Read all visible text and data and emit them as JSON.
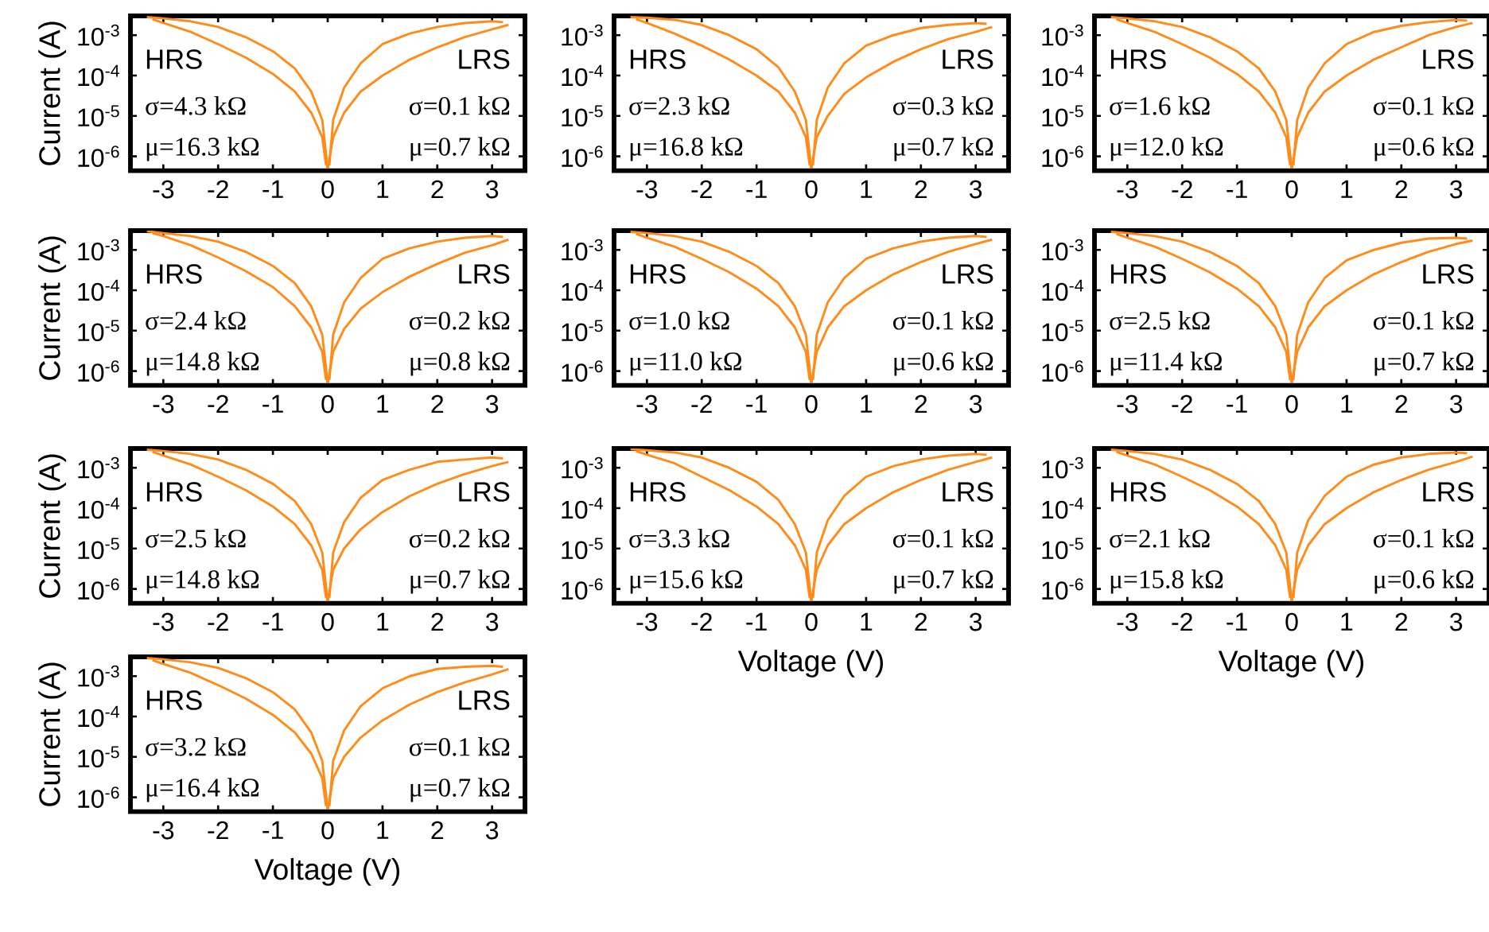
{
  "chart_data": [
    {
      "type": "line",
      "ylabel": "Current (A)",
      "log": "y",
      "xlim": [
        -3.6,
        3.6
      ],
      "ylim": [
        4.4e-07,
        0.003
      ],
      "xticks": [
        -3,
        -2,
        -1,
        0,
        1,
        2,
        3
      ],
      "yticks": [
        {
          "value": 1e-06,
          "label": "10$^{-6}$"
        },
        {
          "value": 1e-05,
          "label": "10$^{-5}$"
        },
        {
          "value": 0.0001,
          "label": "10$^{-4}$"
        },
        {
          "value": 0.001,
          "label": "10$^{-3}$"
        }
      ],
      "annotations": [
        "HRS",
        "σ=4.3 kΩ",
        "μ=16.3 kΩ",
        "LRS",
        "σ=0.1 kΩ",
        "μ=0.7 kΩ"
      ],
      "series": [
        {
          "color": "#ff8c1a",
          "x": [
            0,
            0.1,
            0.3,
            0.6,
            1,
            1.5,
            2,
            2.5,
            3,
            3.3
          ],
          "values": [
            5e-07,
            3e-06,
            1.2e-05,
            4e-05,
            0.0001,
            0.00025,
            0.0005,
            0.0009,
            0.0014,
            0.0018
          ]
        },
        {
          "color": "#ff8c1a",
          "x": [
            0.03,
            0.1,
            0.3,
            0.6,
            1,
            1.5,
            2,
            2.5,
            3,
            3.2
          ],
          "values": [
            6e-07,
            8e-06,
            5e-05,
            0.0002,
            0.0006,
            0.0011,
            0.0016,
            0.002,
            0.0022,
            0.0021
          ]
        },
        {
          "color": "#ff8c1a",
          "x": [
            -3.3,
            -3,
            -2.5,
            -2,
            -1.5,
            -1,
            -0.6,
            -0.3,
            -0.1,
            0
          ],
          "values": [
            0.0028,
            0.0026,
            0.0022,
            0.0016,
            0.0009,
            0.0004,
            0.00015,
            4e-05,
            8e-06,
            5e-07
          ]
        },
        {
          "color": "#ff8c1a",
          "x": [
            -3.2,
            -3,
            -2.5,
            -2,
            -1.5,
            -1,
            -0.6,
            -0.3,
            -0.1,
            -0.03
          ],
          "values": [
            0.0025,
            0.002,
            0.0012,
            0.0006,
            0.00028,
            0.00011,
            4e-05,
            1.2e-05,
            3e-06,
            6e-07
          ]
        }
      ]
    },
    {
      "type": "line",
      "log": "y",
      "xlim": [
        -3.6,
        3.6
      ],
      "ylim": [
        4.4e-07,
        0.003
      ],
      "xticks": [
        -3,
        -2,
        -1,
        0,
        1,
        2,
        3
      ],
      "yticks": [
        {
          "value": 1e-06,
          "label": "10$^{-6}$"
        },
        {
          "value": 1e-05,
          "label": "10$^{-5}$"
        },
        {
          "value": 0.0001,
          "label": "10$^{-4}$"
        },
        {
          "value": 0.001,
          "label": "10$^{-3}$"
        }
      ],
      "annotations": [
        "HRS",
        "σ=2.3 kΩ",
        "μ=16.8 kΩ",
        "LRS",
        "σ=0.3 kΩ",
        "μ=0.7 kΩ"
      ],
      "series": [
        {
          "color": "#ff8c1a",
          "x": [
            0,
            0.1,
            0.3,
            0.6,
            1,
            1.5,
            2,
            2.5,
            3,
            3.3
          ],
          "values": [
            5e-07,
            3e-06,
            1e-05,
            3.5e-05,
            9e-05,
            0.00022,
            0.00045,
            0.0008,
            0.0012,
            0.0016
          ]
        },
        {
          "color": "#ff8c1a",
          "x": [
            0.03,
            0.1,
            0.3,
            0.6,
            1,
            1.5,
            2,
            2.5,
            3,
            3.2
          ],
          "values": [
            6e-07,
            8e-06,
            5e-05,
            0.0002,
            0.00055,
            0.001,
            0.0015,
            0.0018,
            0.002,
            0.0019
          ]
        },
        {
          "color": "#ff8c1a",
          "x": [
            -3.3,
            -3,
            -2.5,
            -2,
            -1.5,
            -1,
            -0.6,
            -0.3,
            -0.1,
            0
          ],
          "values": [
            0.0028,
            0.0027,
            0.0024,
            0.0018,
            0.001,
            0.00045,
            0.00016,
            4e-05,
            8e-06,
            5e-07
          ]
        },
        {
          "color": "#ff8c1a",
          "x": [
            -3.2,
            -3,
            -2.5,
            -2,
            -1.5,
            -1,
            -0.6,
            -0.3,
            -0.1,
            -0.03
          ],
          "values": [
            0.0025,
            0.002,
            0.0011,
            0.00055,
            0.00025,
            0.0001,
            4e-05,
            1.2e-05,
            3e-06,
            6e-07
          ]
        }
      ]
    },
    {
      "type": "line",
      "log": "y",
      "xlim": [
        -3.6,
        3.6
      ],
      "ylim": [
        4.4e-07,
        0.003
      ],
      "xticks": [
        -3,
        -2,
        -1,
        0,
        1,
        2,
        3
      ],
      "yticks": [
        {
          "value": 1e-06,
          "label": "10$^{-6}$"
        },
        {
          "value": 1e-05,
          "label": "10$^{-5}$"
        },
        {
          "value": 0.0001,
          "label": "10$^{-4}$"
        },
        {
          "value": 0.001,
          "label": "10$^{-3}$"
        }
      ],
      "annotations": [
        "HRS",
        "σ=1.6 kΩ",
        "μ=12.0 kΩ",
        "LRS",
        "σ=0.1 kΩ",
        "μ=0.6 kΩ"
      ],
      "series": [
        {
          "color": "#ff8c1a",
          "x": [
            0,
            0.1,
            0.3,
            0.6,
            1,
            1.5,
            2,
            2.5,
            3,
            3.3
          ],
          "values": [
            5e-07,
            3e-06,
            1.2e-05,
            4e-05,
            0.0001,
            0.00025,
            0.0005,
            0.001,
            0.0016,
            0.002
          ]
        },
        {
          "color": "#ff8c1a",
          "x": [
            0.03,
            0.1,
            0.3,
            0.6,
            1,
            1.5,
            2,
            2.5,
            3,
            3.2
          ],
          "values": [
            6e-07,
            8e-06,
            5e-05,
            0.0002,
            0.0006,
            0.0012,
            0.0017,
            0.0021,
            0.0024,
            0.0023
          ]
        },
        {
          "color": "#ff8c1a",
          "x": [
            -3.3,
            -3,
            -2.5,
            -2,
            -1.5,
            -1,
            -0.6,
            -0.3,
            -0.1,
            0
          ],
          "values": [
            0.0028,
            0.0026,
            0.0022,
            0.0016,
            0.0009,
            0.0004,
            0.00015,
            4e-05,
            8e-06,
            5e-07
          ]
        },
        {
          "color": "#ff8c1a",
          "x": [
            -3.2,
            -3,
            -2.5,
            -2,
            -1.5,
            -1,
            -0.6,
            -0.3,
            -0.1,
            -0.03
          ],
          "values": [
            0.0025,
            0.002,
            0.0012,
            0.0006,
            0.00028,
            0.00011,
            4e-05,
            1.2e-05,
            3e-06,
            6e-07
          ]
        }
      ]
    },
    {
      "type": "line",
      "ylabel": "Current (A)",
      "log": "y",
      "xlim": [
        -3.6,
        3.6
      ],
      "ylim": [
        4.4e-07,
        0.003
      ],
      "xticks": [
        -3,
        -2,
        -1,
        0,
        1,
        2,
        3
      ],
      "yticks": [
        {
          "value": 1e-06,
          "label": "10$^{-6}$"
        },
        {
          "value": 1e-05,
          "label": "10$^{-5}$"
        },
        {
          "value": 0.0001,
          "label": "10$^{-4}$"
        },
        {
          "value": 0.001,
          "label": "10$^{-3}$"
        }
      ],
      "annotations": [
        "HRS",
        "σ=2.4 kΩ",
        "μ=14.8 kΩ",
        "LRS",
        "σ=0.2 kΩ",
        "μ=0.8 kΩ"
      ],
      "series": [
        {
          "color": "#ff8c1a",
          "x": [
            0,
            0.1,
            0.3,
            0.6,
            1,
            1.5,
            2,
            2.5,
            3,
            3.3
          ],
          "values": [
            5e-07,
            3e-06,
            1.1e-05,
            3.5e-05,
            9e-05,
            0.00022,
            0.00045,
            0.00085,
            0.0013,
            0.0018
          ]
        },
        {
          "color": "#ff8c1a",
          "x": [
            0.03,
            0.1,
            0.3,
            0.6,
            1,
            1.5,
            2,
            2.5,
            3,
            3.2
          ],
          "values": [
            6e-07,
            8e-06,
            5e-05,
            0.0002,
            0.0006,
            0.0011,
            0.0016,
            0.002,
            0.0022,
            0.0021
          ]
        },
        {
          "color": "#ff8c1a",
          "x": [
            -3.3,
            -3,
            -2.5,
            -2,
            -1.5,
            -1,
            -0.6,
            -0.3,
            -0.1,
            0
          ],
          "values": [
            0.0029,
            0.0026,
            0.0022,
            0.0016,
            0.0009,
            0.0004,
            0.00015,
            4e-05,
            8e-06,
            5e-07
          ]
        },
        {
          "color": "#ff8c1a",
          "x": [
            -3.2,
            -3,
            -2.5,
            -2,
            -1.5,
            -1,
            -0.6,
            -0.3,
            -0.1,
            -0.03
          ],
          "values": [
            0.0026,
            0.0022,
            0.0013,
            0.00065,
            0.0003,
            0.00012,
            4e-05,
            1.2e-05,
            3e-06,
            6e-07
          ]
        }
      ]
    },
    {
      "type": "line",
      "log": "y",
      "xlim": [
        -3.6,
        3.6
      ],
      "ylim": [
        4.4e-07,
        0.003
      ],
      "xticks": [
        -3,
        -2,
        -1,
        0,
        1,
        2,
        3
      ],
      "yticks": [
        {
          "value": 1e-06,
          "label": "10$^{-6}$"
        },
        {
          "value": 1e-05,
          "label": "10$^{-5}$"
        },
        {
          "value": 0.0001,
          "label": "10$^{-4}$"
        },
        {
          "value": 0.001,
          "label": "10$^{-3}$"
        }
      ],
      "annotations": [
        "HRS",
        "σ=1.0 kΩ",
        "μ=11.0 kΩ",
        "LRS",
        "σ=0.1 kΩ",
        "μ=0.6 kΩ"
      ],
      "series": [
        {
          "color": "#ff8c1a",
          "x": [
            0,
            0.1,
            0.3,
            0.6,
            1,
            1.5,
            2,
            2.5,
            3,
            3.3
          ],
          "values": [
            5e-07,
            3e-06,
            1.2e-05,
            4e-05,
            0.0001,
            0.00025,
            0.0005,
            0.0009,
            0.0014,
            0.0018
          ]
        },
        {
          "color": "#ff8c1a",
          "x": [
            0.03,
            0.1,
            0.3,
            0.6,
            1,
            1.5,
            2,
            2.5,
            3,
            3.2
          ],
          "values": [
            6e-07,
            8e-06,
            5e-05,
            0.0002,
            0.0006,
            0.0011,
            0.0016,
            0.002,
            0.0022,
            0.0021
          ]
        },
        {
          "color": "#ff8c1a",
          "x": [
            -3.3,
            -3,
            -2.5,
            -2,
            -1.5,
            -1,
            -0.6,
            -0.3,
            -0.1,
            0
          ],
          "values": [
            0.0028,
            0.0026,
            0.0022,
            0.0016,
            0.0009,
            0.0004,
            0.00015,
            4e-05,
            8e-06,
            5e-07
          ]
        },
        {
          "color": "#ff8c1a",
          "x": [
            -3.2,
            -3,
            -2.5,
            -2,
            -1.5,
            -1,
            -0.6,
            -0.3,
            -0.1,
            -0.03
          ],
          "values": [
            0.0025,
            0.002,
            0.0012,
            0.0006,
            0.00028,
            0.00011,
            4e-05,
            1.2e-05,
            3e-06,
            6e-07
          ]
        }
      ]
    },
    {
      "type": "line",
      "log": "y",
      "xlim": [
        -3.6,
        3.6
      ],
      "ylim": [
        4.4e-07,
        0.003
      ],
      "xticks": [
        -3,
        -2,
        -1,
        0,
        1,
        2,
        3
      ],
      "yticks": [
        {
          "value": 1e-06,
          "label": "10$^{-6}$"
        },
        {
          "value": 1e-05,
          "label": "10$^{-5}$"
        },
        {
          "value": 0.0001,
          "label": "10$^{-4}$"
        },
        {
          "value": 0.001,
          "label": "10$^{-3}$"
        }
      ],
      "annotations": [
        "HRS",
        "σ=2.5 kΩ",
        "μ=11.4 kΩ",
        "LRS",
        "σ=0.1 kΩ",
        "μ=0.7 kΩ"
      ],
      "series": [
        {
          "color": "#ff8c1a",
          "x": [
            0,
            0.1,
            0.3,
            0.6,
            1,
            1.5,
            2,
            2.5,
            3,
            3.3
          ],
          "values": [
            5e-07,
            3e-06,
            1.2e-05,
            4e-05,
            0.0001,
            0.00025,
            0.0005,
            0.0009,
            0.0014,
            0.0017
          ]
        },
        {
          "color": "#ff8c1a",
          "x": [
            0.03,
            0.1,
            0.3,
            0.6,
            1,
            1.5,
            2,
            2.5,
            3,
            3.2
          ],
          "values": [
            6e-07,
            8e-06,
            5e-05,
            0.0002,
            0.00055,
            0.001,
            0.0015,
            0.0019,
            0.002,
            0.0019
          ]
        },
        {
          "color": "#ff8c1a",
          "x": [
            -3.3,
            -3,
            -2.5,
            -2,
            -1.5,
            -1,
            -0.6,
            -0.3,
            -0.1,
            0
          ],
          "values": [
            0.0028,
            0.0026,
            0.0022,
            0.0016,
            0.0009,
            0.0004,
            0.00015,
            4e-05,
            8e-06,
            5e-07
          ]
        },
        {
          "color": "#ff8c1a",
          "x": [
            -3.2,
            -3,
            -2.5,
            -2,
            -1.5,
            -1,
            -0.6,
            -0.3,
            -0.1,
            -0.03
          ],
          "values": [
            0.0025,
            0.002,
            0.0012,
            0.0006,
            0.00028,
            0.00011,
            4e-05,
            1.2e-05,
            3e-06,
            6e-07
          ]
        }
      ]
    },
    {
      "type": "line",
      "ylabel": "Current (A)",
      "log": "y",
      "xlim": [
        -3.6,
        3.6
      ],
      "ylim": [
        4.4e-07,
        0.003
      ],
      "xticks": [
        -3,
        -2,
        -1,
        0,
        1,
        2,
        3
      ],
      "yticks": [
        {
          "value": 1e-06,
          "label": "10$^{-6}$"
        },
        {
          "value": 1e-05,
          "label": "10$^{-5}$"
        },
        {
          "value": 0.0001,
          "label": "10$^{-4}$"
        },
        {
          "value": 0.001,
          "label": "10$^{-3}$"
        }
      ],
      "annotations": [
        "HRS",
        "σ=2.5 kΩ",
        "μ=14.8 kΩ",
        "LRS",
        "σ=0.2 kΩ",
        "μ=0.7 kΩ"
      ],
      "series": [
        {
          "color": "#ff8c1a",
          "x": [
            0,
            0.1,
            0.3,
            0.6,
            1,
            1.5,
            2,
            2.5,
            3,
            3.3
          ],
          "values": [
            5e-07,
            3e-06,
            1e-05,
            3e-05,
            8e-05,
            0.0002,
            0.0004,
            0.0007,
            0.0011,
            0.0014
          ]
        },
        {
          "color": "#ff8c1a",
          "x": [
            0.03,
            0.1,
            0.3,
            0.6,
            1,
            1.5,
            2,
            2.5,
            3,
            3.2
          ],
          "values": [
            6e-07,
            8e-06,
            4.5e-05,
            0.00018,
            0.0005,
            0.0009,
            0.0014,
            0.0016,
            0.0018,
            0.0017
          ]
        },
        {
          "color": "#ff8c1a",
          "x": [
            -3.3,
            -3,
            -2.5,
            -2,
            -1.5,
            -1,
            -0.6,
            -0.3,
            -0.1,
            0
          ],
          "values": [
            0.0028,
            0.0026,
            0.0022,
            0.0016,
            0.0009,
            0.0004,
            0.00015,
            4e-05,
            8e-06,
            5e-07
          ]
        },
        {
          "color": "#ff8c1a",
          "x": [
            -3.2,
            -3,
            -2.5,
            -2,
            -1.5,
            -1,
            -0.6,
            -0.3,
            -0.1,
            -0.03
          ],
          "values": [
            0.0025,
            0.002,
            0.0012,
            0.0006,
            0.00028,
            0.00011,
            4e-05,
            1.2e-05,
            3e-06,
            6e-07
          ]
        }
      ]
    },
    {
      "type": "line",
      "xlabel": "Voltage (V)",
      "log": "y",
      "xlim": [
        -3.6,
        3.6
      ],
      "ylim": [
        4.4e-07,
        0.003
      ],
      "xticks": [
        -3,
        -2,
        -1,
        0,
        1,
        2,
        3
      ],
      "yticks": [
        {
          "value": 1e-06,
          "label": "10$^{-6}$"
        },
        {
          "value": 1e-05,
          "label": "10$^{-5}$"
        },
        {
          "value": 0.0001,
          "label": "10$^{-4}$"
        },
        {
          "value": 0.001,
          "label": "10$^{-3}$"
        }
      ],
      "annotations": [
        "HRS",
        "σ=3.3 kΩ",
        "μ=15.6 kΩ",
        "LRS",
        "σ=0.1 kΩ",
        "μ=0.7 kΩ"
      ],
      "series": [
        {
          "color": "#ff8c1a",
          "x": [
            0,
            0.1,
            0.3,
            0.6,
            1,
            1.5,
            2,
            2.5,
            3,
            3.3
          ],
          "values": [
            5e-07,
            3e-06,
            1.2e-05,
            4e-05,
            0.0001,
            0.00025,
            0.0005,
            0.0009,
            0.0014,
            0.0018
          ]
        },
        {
          "color": "#ff8c1a",
          "x": [
            0.03,
            0.1,
            0.3,
            0.6,
            1,
            1.5,
            2,
            2.5,
            3,
            3.2
          ],
          "values": [
            6e-07,
            8e-06,
            5e-05,
            0.0002,
            0.0006,
            0.0011,
            0.0016,
            0.002,
            0.0022,
            0.0021
          ]
        },
        {
          "color": "#ff8c1a",
          "x": [
            -3.3,
            -3,
            -2.5,
            -2,
            -1.5,
            -1,
            -0.6,
            -0.3,
            -0.1,
            0
          ],
          "values": [
            0.0029,
            0.0027,
            0.0024,
            0.0018,
            0.001,
            0.00045,
            0.00016,
            4e-05,
            8e-06,
            5e-07
          ]
        },
        {
          "color": "#ff8c1a",
          "x": [
            -3.2,
            -3,
            -2.5,
            -2,
            -1.5,
            -1,
            -0.6,
            -0.3,
            -0.1,
            -0.03
          ],
          "values": [
            0.0026,
            0.0021,
            0.0013,
            0.0006,
            0.00028,
            0.00011,
            4e-05,
            1.2e-05,
            3e-06,
            6e-07
          ]
        }
      ]
    },
    {
      "type": "line",
      "xlabel": "Voltage (V)",
      "log": "y",
      "xlim": [
        -3.6,
        3.6
      ],
      "ylim": [
        4.4e-07,
        0.003
      ],
      "xticks": [
        -3,
        -2,
        -1,
        0,
        1,
        2,
        3
      ],
      "yticks": [
        {
          "value": 1e-06,
          "label": "10$^{-6}$"
        },
        {
          "value": 1e-05,
          "label": "10$^{-5}$"
        },
        {
          "value": 0.0001,
          "label": "10$^{-4}$"
        },
        {
          "value": 0.001,
          "label": "10$^{-3}$"
        }
      ],
      "annotations": [
        "HRS",
        "σ=2.1 kΩ",
        "μ=15.8 kΩ",
        "LRS",
        "σ=0.1 kΩ",
        "μ=0.6 kΩ"
      ],
      "series": [
        {
          "color": "#ff8c1a",
          "x": [
            0,
            0.1,
            0.3,
            0.6,
            1,
            1.5,
            2,
            2.5,
            3,
            3.3
          ],
          "values": [
            5e-07,
            3e-06,
            1.2e-05,
            4e-05,
            0.0001,
            0.00025,
            0.0005,
            0.0009,
            0.0014,
            0.0019
          ]
        },
        {
          "color": "#ff8c1a",
          "x": [
            0.03,
            0.1,
            0.3,
            0.6,
            1,
            1.5,
            2,
            2.5,
            3,
            3.2
          ],
          "values": [
            6e-07,
            8e-06,
            5e-05,
            0.0002,
            0.0006,
            0.0012,
            0.0018,
            0.0022,
            0.0024,
            0.0023
          ]
        },
        {
          "color": "#ff8c1a",
          "x": [
            -3.3,
            -3,
            -2.5,
            -2,
            -1.5,
            -1,
            -0.6,
            -0.3,
            -0.1,
            0
          ],
          "values": [
            0.0028,
            0.0026,
            0.0022,
            0.0016,
            0.0009,
            0.0004,
            0.00015,
            4e-05,
            8e-06,
            5e-07
          ]
        },
        {
          "color": "#ff8c1a",
          "x": [
            -3.2,
            -3,
            -2.5,
            -2,
            -1.5,
            -1,
            -0.6,
            -0.3,
            -0.1,
            -0.03
          ],
          "values": [
            0.0025,
            0.002,
            0.0012,
            0.0006,
            0.00028,
            0.00011,
            4e-05,
            1.2e-05,
            3e-06,
            6e-07
          ]
        }
      ]
    },
    {
      "type": "line",
      "ylabel": "Current (A)",
      "xlabel": "Voltage (V)",
      "log": "y",
      "xlim": [
        -3.6,
        3.6
      ],
      "ylim": [
        4.4e-07,
        0.003
      ],
      "xticks": [
        -3,
        -2,
        -1,
        0,
        1,
        2,
        3
      ],
      "yticks": [
        {
          "value": 1e-06,
          "label": "10$^{-6}$"
        },
        {
          "value": 1e-05,
          "label": "10$^{-5}$"
        },
        {
          "value": 0.0001,
          "label": "10$^{-4}$"
        },
        {
          "value": 0.001,
          "label": "10$^{-3}$"
        }
      ],
      "annotations": [
        "HRS",
        "σ=3.2 kΩ",
        "μ=16.4 kΩ",
        "LRS",
        "σ=0.1 kΩ",
        "μ=0.7 kΩ"
      ],
      "series": [
        {
          "color": "#ff8c1a",
          "x": [
            0,
            0.1,
            0.3,
            0.6,
            1,
            1.5,
            2,
            2.5,
            3,
            3.3
          ],
          "values": [
            5e-07,
            3e-06,
            1e-05,
            3e-05,
            8e-05,
            0.0002,
            0.0004,
            0.0007,
            0.0011,
            0.0015
          ]
        },
        {
          "color": "#ff8c1a",
          "x": [
            0.03,
            0.1,
            0.3,
            0.6,
            1,
            1.5,
            2,
            2.5,
            3,
            3.2
          ],
          "values": [
            6e-07,
            8e-06,
            4.5e-05,
            0.00018,
            0.0005,
            0.001,
            0.0015,
            0.0017,
            0.0018,
            0.0017
          ]
        },
        {
          "color": "#ff8c1a",
          "x": [
            -3.3,
            -3,
            -2.5,
            -2,
            -1.5,
            -1,
            -0.6,
            -0.3,
            -0.1,
            0
          ],
          "values": [
            0.0028,
            0.0026,
            0.0022,
            0.0016,
            0.0009,
            0.0004,
            0.00015,
            4e-05,
            8e-06,
            5e-07
          ]
        },
        {
          "color": "#ff8c1a",
          "x": [
            -3.2,
            -3,
            -2.5,
            -2,
            -1.5,
            -1,
            -0.6,
            -0.3,
            -0.1,
            -0.03
          ],
          "values": [
            0.0025,
            0.002,
            0.0012,
            0.0006,
            0.00028,
            0.00011,
            4e-05,
            1.2e-05,
            3e-06,
            6e-07
          ]
        }
      ]
    }
  ]
}
